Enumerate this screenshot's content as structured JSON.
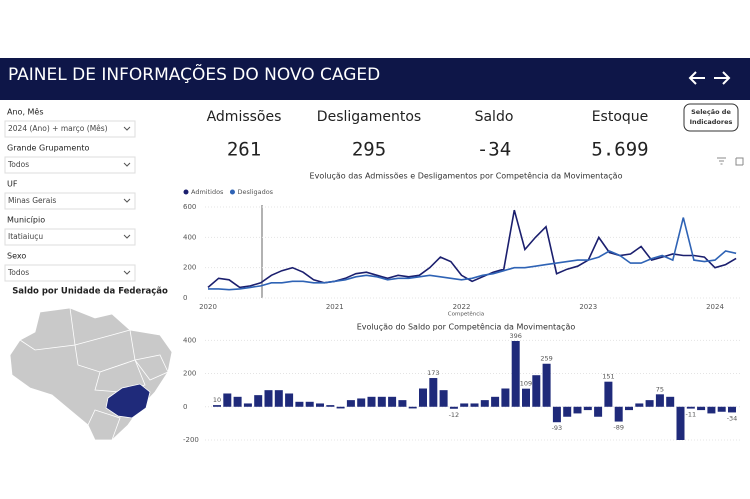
{
  "header": {
    "title": "PAINEL DE INFORMAÇÕES DO NOVO CAGED"
  },
  "filters": [
    {
      "label": "Ano, Mês",
      "value": "2024 (Ano) + março (Mês)"
    },
    {
      "label": "Grande Grupamento",
      "value": "Todos"
    },
    {
      "label": "UF",
      "value": "Minas Gerais"
    },
    {
      "label": "Município",
      "value": "Itatiaiuçu"
    },
    {
      "label": "Sexo",
      "value": "Todos"
    }
  ],
  "map": {
    "title": "Saldo por Unidade da Federação"
  },
  "kpis": [
    {
      "label": "Admissões",
      "value": "261"
    },
    {
      "label": "Desligamentos",
      "value": "295"
    },
    {
      "label": "Saldo",
      "value": "-34"
    },
    {
      "label": "Estoque",
      "value": "5.699"
    }
  ],
  "button": {
    "label_lines": [
      "Seleção de",
      "Indicadores"
    ]
  },
  "chart_data": [
    {
      "type": "line",
      "title": "Evolução das Admissões e Desligamentos por Competência da Movimentação",
      "x_label": "Competência",
      "categories": [
        "2020",
        null,
        null,
        null,
        null,
        null,
        null,
        null,
        null,
        null,
        null,
        null,
        "2021",
        null,
        null,
        null,
        null,
        null,
        null,
        null,
        null,
        null,
        null,
        null,
        "2022",
        null,
        null,
        null,
        null,
        null,
        null,
        null,
        null,
        null,
        null,
        null,
        "2023",
        null,
        null,
        null,
        null,
        null,
        null,
        null,
        null,
        null,
        null,
        null,
        "2024",
        null,
        null
      ],
      "series": [
        {
          "name": "Admitidos",
          "color": "#1b1f6e",
          "values": [
            70,
            130,
            120,
            70,
            80,
            100,
            150,
            180,
            200,
            170,
            120,
            100,
            110,
            130,
            160,
            170,
            150,
            130,
            150,
            140,
            150,
            200,
            270,
            240,
            150,
            110,
            140,
            170,
            190,
            580,
            320,
            400,
            470,
            160,
            190,
            210,
            250,
            400,
            300,
            280,
            290,
            340,
            250,
            270,
            290,
            280,
            280,
            270,
            200,
            220,
            261
          ]
        },
        {
          "name": "Desligados",
          "color": "#2f63b5",
          "values": [
            60,
            60,
            55,
            60,
            70,
            80,
            100,
            100,
            110,
            110,
            100,
            100,
            110,
            120,
            140,
            150,
            140,
            120,
            130,
            130,
            140,
            150,
            140,
            130,
            120,
            130,
            150,
            160,
            180,
            200,
            200,
            210,
            220,
            230,
            240,
            250,
            250,
            270,
            310,
            280,
            230,
            230,
            260,
            280,
            250,
            530,
            250,
            240,
            250,
            310,
            295
          ]
        }
      ],
      "ylim": [
        0,
        620
      ],
      "yticks": [
        0,
        200,
        400,
        600
      ],
      "grid": true
    },
    {
      "type": "bar",
      "title": "Evolução do Saldo por Competência da Movimentação",
      "color": "#1f2a7a",
      "values": [
        10,
        80,
        60,
        20,
        70,
        100,
        100,
        80,
        30,
        30,
        20,
        10,
        -10,
        40,
        50,
        60,
        60,
        60,
        40,
        -10,
        110,
        173,
        100,
        -12,
        20,
        20,
        40,
        60,
        110,
        396,
        109,
        190,
        259,
        -93,
        -60,
        -40,
        -20,
        -60,
        151,
        -89,
        -20,
        20,
        40,
        75,
        60,
        -200,
        -11,
        -20,
        -40,
        -30,
        -34
      ],
      "value_labels": [
        "10",
        null,
        null,
        null,
        null,
        null,
        null,
        null,
        null,
        null,
        null,
        null,
        null,
        null,
        null,
        null,
        null,
        null,
        null,
        null,
        null,
        "173",
        null,
        "-12",
        null,
        null,
        null,
        null,
        null,
        "396",
        "109",
        null,
        "259",
        "-93",
        null,
        null,
        null,
        null,
        "151",
        "-89",
        null,
        null,
        null,
        "75",
        null,
        null,
        "-11",
        null,
        null,
        null,
        "-34"
      ],
      "ylim": [
        -200,
        420
      ],
      "yticks": [
        -200,
        0,
        200,
        400
      ],
      "grid": true
    }
  ]
}
